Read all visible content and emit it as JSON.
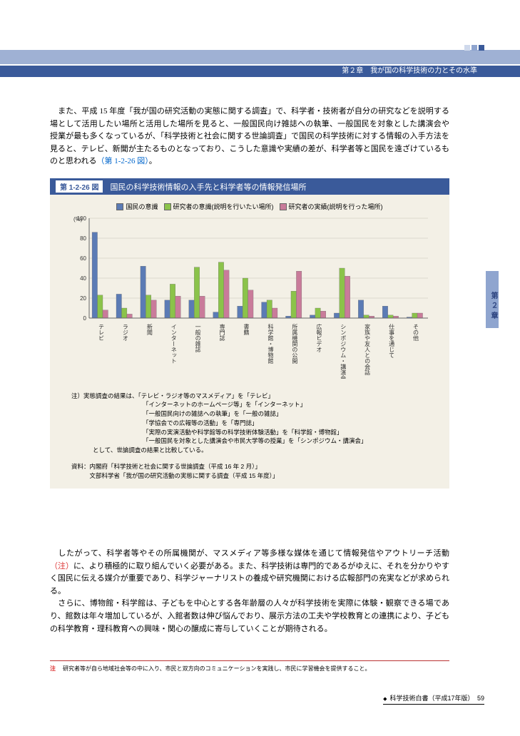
{
  "header": {
    "chapter_label": "第２章　我が国の科学技術の力とその水準"
  },
  "paragraphs": {
    "p1": "　また、平成 15 年度「我が国の研究活動の実態に関する調査」で、科学者・技術者が自分の研究などを説明する場として活用したい場所と活用した場所を見ると、一般国民向け雑誌への執筆、一般国民を対象とした講演会や授業が最も多くなっているが、「科学技術と社会に関する世論調査」で国民の科学技術に対する情報の入手方法を見ると、テレビ、新聞が主たるものとなっており、こうした意識や実績の差が、科学者等と国民を遠ざけているものと思われる",
    "p1_ref": "（第 1-2-26 図）",
    "p1_end": "。",
    "p2a": "　したがって、科学者等やその所属機関が、マスメディア等多様な媒体を通じて情報発信やアウトリーチ活動",
    "p2_note": "（注）",
    "p2b": "に、より積極的に取り組んでいく必要がある。また、科学技術は専門的であるがゆえに、それを分かりやすく国民に伝える媒介が重要であり、科学ジャーナリストの養成や研究機関における広報部門の充実などが求められる。",
    "p3": "　さらに、博物館・科学館は、子どもを中心とする各年齢層の人々が科学技術を実際に体験・観察できる場であり、館数は年々増加しているが、入館者数は伸び悩んでおり、展示方法の工夫や学校教育との連携により、子どもの科学教育・理科教育への興味・関心の醸成に寄与していくことが期待される。"
  },
  "figure": {
    "label": "第 1-2-26 図",
    "title": "国民の科学技術情報の入手先と科学者等の情報発信場所",
    "legend": [
      {
        "label": "国民の意識",
        "color": "#5b7bb5"
      },
      {
        "label": "研究者の意識(説明を行いたい場所)",
        "color": "#8bc34a"
      },
      {
        "label": "研究者の実績(説明を行った場所)",
        "color": "#c97b9a"
      }
    ],
    "y_label": "(%)",
    "ylim": [
      0,
      100
    ],
    "ytick_step": 20,
    "categories": [
      "テレビ",
      "ラジオ",
      "新聞",
      "インターネット",
      "一般の雑誌",
      "専門誌",
      "書籍",
      "科学館・博物館",
      "所属機関の公開",
      "広報ビデオ",
      "シンポジウム・講演会",
      "家族や友人との会話",
      "仕事を通じて",
      "その他"
    ],
    "series": {
      "public": [
        86,
        24,
        52,
        18,
        18,
        6,
        12,
        16,
        2,
        3,
        5,
        18,
        12,
        1
      ],
      "wish": [
        23,
        10,
        23,
        34,
        51,
        56,
        40,
        18,
        27,
        10,
        50,
        3,
        3,
        5
      ],
      "actual": [
        8,
        4,
        18,
        22,
        22,
        48,
        28,
        10,
        47,
        7,
        42,
        2,
        2,
        5
      ]
    },
    "background_color": "#f3f0e6",
    "grid_color": "#c8c4b8",
    "bar_colors": [
      "#5b7bb5",
      "#8bc34a",
      "#c97b9a"
    ],
    "axis_fontsize": 8
  },
  "notes": {
    "lead": "注）実態調査の結果は、「テレビ・ラジオ等のマスメディア」を「テレビ」",
    "lines": [
      "「インターネットのホームページ等」を「インターネット」",
      "「一般国民向けの雑誌への執筆」を「一般の雑誌」",
      "「学協会での広報等の活動」を「専門誌」",
      "「実際の実演活動や科学館等の科学技術体験活動」を「科学館・博物館」",
      "「一般国民を対象とした講演会や市民大学等の授業」を「シンポジウム・講演会」"
    ],
    "tail": "として、世論調査の結果と比較している。"
  },
  "source": {
    "line1": "資料：内閣府「科学技術と社会に関する世論調査（平成 16 年 2 月）」",
    "line2": "　　　文部科学省「我が国の研究活動の実態に関する調査（平成 15 年度）」"
  },
  "side_tab": "第２章",
  "footnote": {
    "label": "注",
    "text": "研究者等が自ら地域社会等の中に入り、市民と双方向のコミュニケーションを実践し、市民に学習機会を提供すること。"
  },
  "footer": {
    "text": "科学技術白書（平成17年版）　59"
  }
}
